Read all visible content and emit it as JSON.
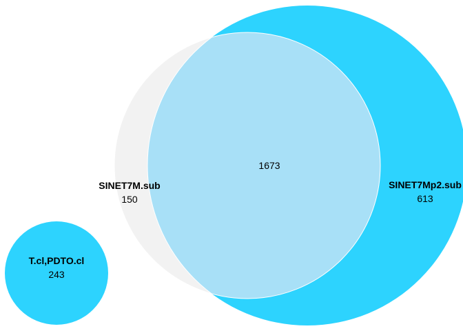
{
  "diagram": {
    "type": "euler",
    "sets": [
      {
        "name": "SINET7Mp2.sub",
        "unique_count": "613",
        "color": "#2dd3fe"
      },
      {
        "name": "SINET7M.sub",
        "unique_count": "150",
        "color": "#f2f2f2"
      },
      {
        "name": "T.cl,PDTO.cl",
        "unique_count": "243",
        "color": "#2dd3fe"
      }
    ],
    "intersections": [
      {
        "sets": [
          "SINET7M.sub",
          "SINET7Mp2.sub"
        ],
        "count": "1673",
        "color": "#a8e0f7"
      }
    ]
  }
}
